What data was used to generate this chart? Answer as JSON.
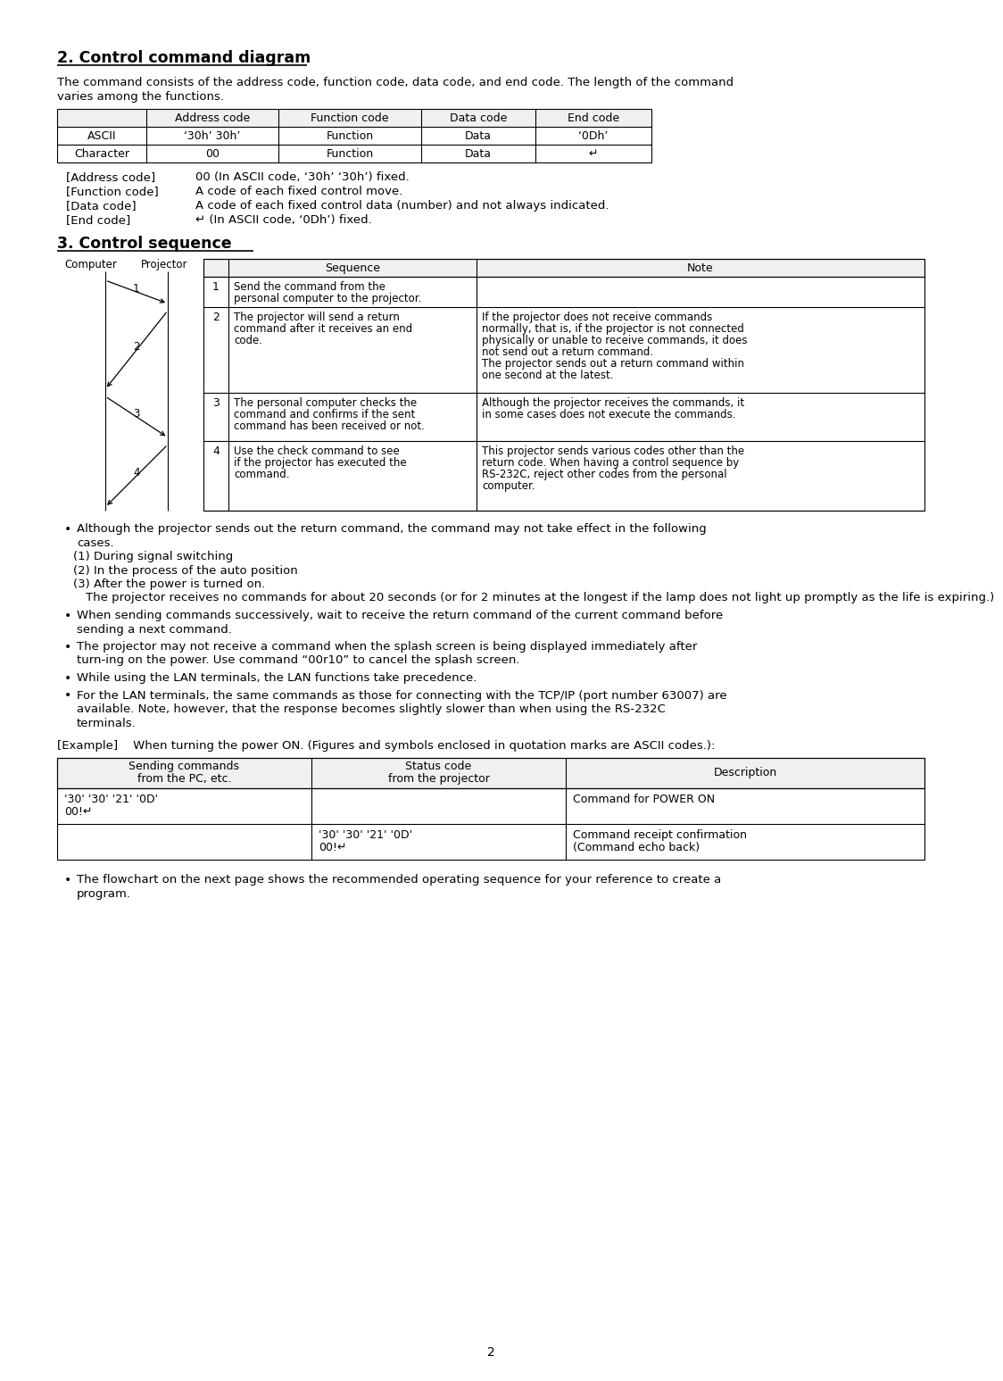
{
  "title2": "2. Control command diagram",
  "title3": "3. Control sequence",
  "bg_color": "#ffffff",
  "intro_text": "The command consists of the address code, function code, data code, and end code. The length of the command\nvaries among the functions.",
  "cmd_table_headers": [
    "",
    "Address code",
    "Function code",
    "Data code",
    "End code"
  ],
  "cmd_table_row1": [
    "ASCII",
    "‘30h’ 30h’",
    "Function",
    "Data",
    "‘0Dh’"
  ],
  "cmd_table_row2": [
    "Character",
    "00",
    "Function",
    "Data",
    "↵"
  ],
  "legend_items": [
    [
      "[Address code]",
      "00 (In ASCII code, ‘30h’ ‘30h’) fixed."
    ],
    [
      "[Function code]",
      "A code of each fixed control move."
    ],
    [
      "[Data code]",
      "A code of each fixed control data (number) and not always indicated."
    ],
    [
      "[End code]",
      "↵ (In ASCII code, ‘0Dh’) fixed."
    ]
  ],
  "seq_rows": [
    {
      "num": "1",
      "seq": "Send the command from the\npersonal computer to the projector.",
      "note": ""
    },
    {
      "num": "2",
      "seq": "The projector will send a return\ncommand after it receives an end\ncode.",
      "note": "If the projector does not receive commands\nnormally, that is, if the projector is not connected\nphysically or unable to receive commands, it does\nnot send out a return command.\nThe projector sends out a return command within\none second at the latest."
    },
    {
      "num": "3",
      "seq": "The personal computer checks the\ncommand and confirms if the sent\ncommand has been received or not.",
      "note": "Although the projector receives the commands, it\nin some cases does not execute the commands."
    },
    {
      "num": "4",
      "seq": "Use the check command to see\nif the projector has executed the\ncommand.",
      "note": "This projector sends various codes other than the\nreturn code. When having a control sequence by\nRS-232C, reject other codes from the personal\ncomputer."
    }
  ],
  "bullet_points": [
    {
      "text": "Although the projector sends out the return command, the command may not take effect in the following cases.",
      "sub": [
        "(1) During signal switching",
        "(2) In the process of the auto position",
        "(3) After the power is turned on.",
        "The projector receives no commands for about 20 seconds (or for 2 minutes at the longest if the lamp does not light up promptly as the life is expiring.)"
      ],
      "sub_indent": [
        72,
        72,
        72,
        86
      ]
    },
    {
      "text": "When sending commands successively, wait to receive the return command of the current command before sending a next command.",
      "sub": [],
      "sub_indent": []
    },
    {
      "text": "The projector may not receive a command when the splash screen is being displayed immediately after turn-ing on the power.  Use command “00r10” to cancel the splash screen.",
      "sub": [],
      "sub_indent": []
    },
    {
      "text": "While using the LAN terminals, the LAN functions take precedence.",
      "sub": [],
      "sub_indent": []
    },
    {
      "text": "For the LAN terminals, the same commands as those for connecting with the TCP/IP (port number 63007) are available.  Note, however, that the response becomes slightly slower than when using the RS-232C terminals.",
      "sub": [],
      "sub_indent": []
    }
  ],
  "example_label": "[Example]    When turning the power ON. (Figures and symbols enclosed in quotation marks are ASCII codes.):",
  "ex_table_headers": [
    "Sending commands\nfrom the PC, etc.",
    "Status code\nfrom the projector",
    "Description"
  ],
  "ex_rows": [
    [
      "'30' '30' '21' '0D'\n00!↵",
      "",
      "Command for POWER ON"
    ],
    [
      "",
      "'30' '30' '21' '0D'\n00!↵",
      "Command receipt confirmation\n(Command echo back)"
    ]
  ],
  "final_bullet": "The flowchart on the next page shows the recommended operating sequence for your reference to create a program.",
  "page_num": "2"
}
